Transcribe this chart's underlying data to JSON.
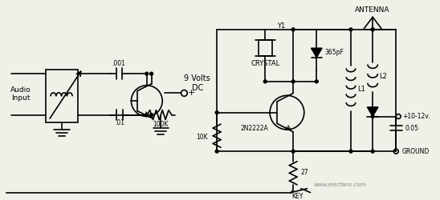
{
  "bg_color": "#f0efe8",
  "line_color": "#000000",
  "text_color": "#000000",
  "watermark": "www.elecfans.com",
  "labels": {
    "audio_input": "Audio\nInput",
    "nine_volts": "9 Volts\nDC",
    "c1": ".001",
    "c2": ".01",
    "r1": "100K",
    "crystal_label": "CRYSTAL",
    "y1": "Y1",
    "cap365": "365pF",
    "transistor": "2N2222A",
    "r2": "10K",
    "r3": "27",
    "key": "KEY",
    "antenna": "ANTENNA",
    "l1": "L1",
    "l2": "L2",
    "voltage": "+10-12v.",
    "cap005": "0.05",
    "ground": "GROUND"
  },
  "figsize": [
    5.48,
    2.5
  ],
  "dpi": 100
}
